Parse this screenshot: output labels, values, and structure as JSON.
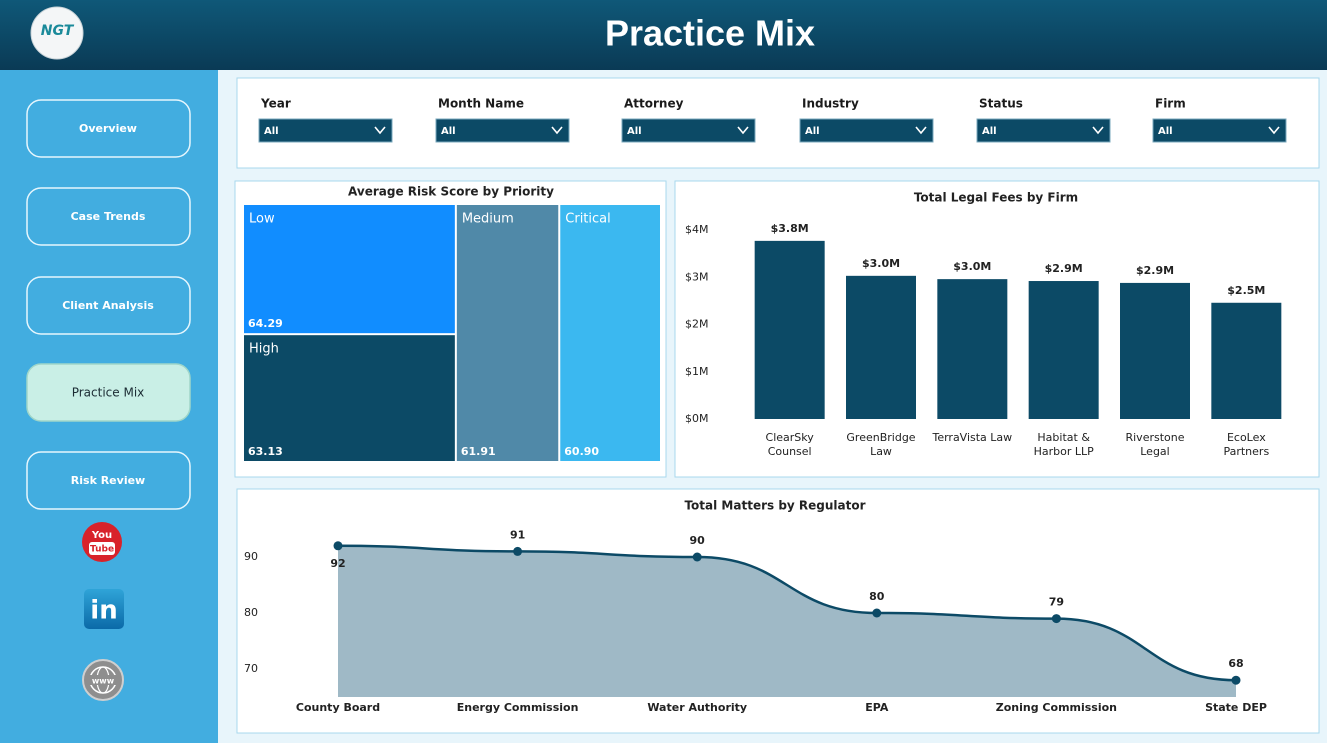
{
  "header": {
    "title": "Practice Mix",
    "logo": "NGT"
  },
  "nav": [
    "Overview",
    "Case Trends",
    "Client Analysis",
    "Practice Mix",
    "Risk Review"
  ],
  "active_nav": 3,
  "social": {
    "youtube": [
      "You",
      "Tube"
    ],
    "linkedin": "in",
    "web": "www"
  },
  "filters": [
    {
      "label": "Year",
      "value": "All"
    },
    {
      "label": "Month Name",
      "value": "All"
    },
    {
      "label": "Attorney",
      "value": "All"
    },
    {
      "label": "Industry",
      "value": "All"
    },
    {
      "label": "Status",
      "value": "All"
    },
    {
      "label": "Firm",
      "value": "All"
    }
  ],
  "chart_data": [
    {
      "type": "treemap",
      "title": "Average Risk Score by Priority",
      "categories": [
        "Low",
        "High",
        "Medium",
        "Critical"
      ],
      "values": [
        64.29,
        63.13,
        61.91,
        60.9
      ],
      "value_labels": [
        "64.29",
        "63.13",
        "61.91",
        "60.90"
      ],
      "colors": [
        "#118dff",
        "#0c4a66",
        "#5089a8",
        "#3bb8f0"
      ]
    },
    {
      "type": "bar",
      "title": "Total Legal Fees by Firm",
      "categories": [
        "ClearSky Counsel",
        "GreenBridge Law",
        "TerraVista Law",
        "Habitat & Harbor LLP",
        "Riverstone Legal",
        "EcoLex Partners"
      ],
      "values": [
        3770000,
        3030000,
        2960000,
        2920000,
        2880000,
        2460000
      ],
      "value_labels": [
        "$3.8M",
        "$3.0M",
        "$3.0M",
        "$2.9M",
        "$2.9M",
        "$2.5M"
      ],
      "color": "#0c4a66",
      "ylim": [
        0,
        4000000
      ],
      "yticks": [
        {
          "value": 0,
          "label": "$0M"
        },
        {
          "value": 1000000,
          "label": "$1M"
        },
        {
          "value": 2000000,
          "label": "$2M"
        },
        {
          "value": 3000000,
          "label": "$3M"
        },
        {
          "value": 4000000,
          "label": "$4M"
        }
      ]
    },
    {
      "type": "area",
      "title": "Total Matters by Regulator",
      "categories": [
        "County Board",
        "Energy Commission",
        "Water Authority",
        "EPA",
        "Zoning Commission",
        "State DEP"
      ],
      "values": [
        92,
        91,
        90,
        80,
        79,
        68
      ],
      "color": "#0c4a66",
      "fill": "#9fb9c6",
      "ylim": [
        65,
        96
      ],
      "yticks": [
        70,
        80,
        90
      ]
    }
  ]
}
